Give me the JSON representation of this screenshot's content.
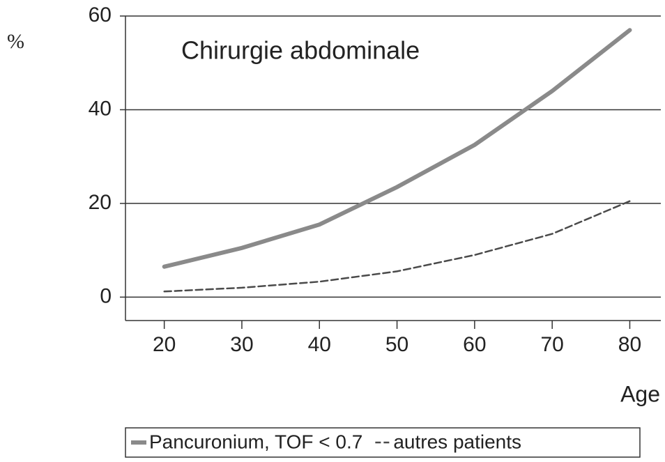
{
  "chart_data": {
    "type": "line",
    "annotation": "Chirurgie abdominale",
    "ylabel": "%",
    "xlabel": "Age",
    "x": [
      20,
      30,
      40,
      50,
      60,
      70,
      80
    ],
    "series": [
      {
        "name": "Pancuronium, TOF < 0.7",
        "color": "#8a8a8a",
        "dashed": false,
        "values": [
          6.5,
          10.5,
          15.5,
          23.5,
          32.5,
          44,
          57
        ]
      },
      {
        "name": "autres patients",
        "color": "#4a4a4a",
        "dashed": true,
        "values": [
          1.2,
          2,
          3.3,
          5.5,
          9,
          13.5,
          20.5
        ]
      }
    ],
    "xlim": [
      15,
      84
    ],
    "xticks": [
      20,
      30,
      40,
      50,
      60,
      70,
      80
    ],
    "ylim": [
      -5,
      60
    ],
    "yticks": [
      0,
      20,
      40,
      60
    ],
    "grid": true,
    "legend": "bottom"
  }
}
